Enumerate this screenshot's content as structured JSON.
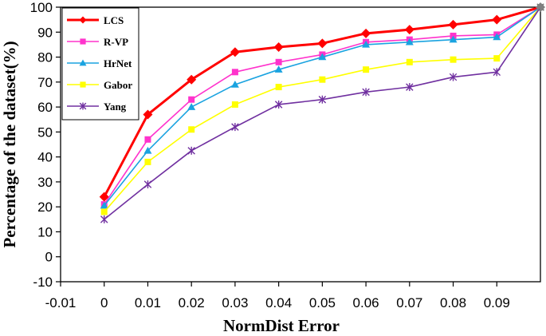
{
  "chart_data": {
    "type": "line",
    "title": "",
    "xlabel": "NormDist Error",
    "ylabel": "Percentage of the dataset(%)",
    "x": [
      0,
      0.01,
      0.02,
      0.03,
      0.04,
      0.05,
      0.06,
      0.07,
      0.08,
      0.09,
      0.1
    ],
    "xlim": [
      -0.01,
      0.1
    ],
    "ylim": [
      -10,
      100
    ],
    "xticks": [
      -0.01,
      0,
      0.01,
      0.02,
      0.03,
      0.04,
      0.05,
      0.06,
      0.07,
      0.08,
      0.09
    ],
    "xtick_labels": [
      "-0.01",
      "0",
      "0.01",
      "0.02",
      "0.03",
      "0.04",
      "0.05",
      "0.06",
      "0.07",
      "0.08",
      "0.09"
    ],
    "yticks": [
      -10,
      0,
      10,
      20,
      30,
      40,
      50,
      60,
      70,
      80,
      90,
      100
    ],
    "ytick_labels": [
      "-10",
      "0",
      "10",
      "20",
      "30",
      "40",
      "50",
      "60",
      "70",
      "80",
      "90",
      "100"
    ],
    "grid": false,
    "legend_position": "top-left",
    "series": [
      {
        "name": "LCS",
        "color": "#ff0000",
        "marker": "diamond",
        "values": [
          24,
          57,
          71,
          82,
          84,
          85.5,
          89.5,
          91,
          93,
          95,
          100
        ]
      },
      {
        "name": "R-VP",
        "color": "#ff33cc",
        "marker": "square",
        "values": [
          21,
          47,
          63,
          74,
          78,
          81,
          86,
          87,
          88.5,
          89,
          100
        ]
      },
      {
        "name": "HrNet",
        "color": "#1aa3e0",
        "marker": "triangle",
        "values": [
          20.5,
          42.5,
          60,
          69,
          75,
          80,
          85,
          86,
          87,
          88,
          100
        ]
      },
      {
        "name": "Gabor",
        "color": "#ffff00",
        "marker": "square",
        "values": [
          18,
          38,
          51,
          61,
          68,
          71,
          75,
          78,
          79,
          79.5,
          100
        ]
      },
      {
        "name": "Yang",
        "color": "#7030a0",
        "marker": "star",
        "values": [
          15,
          29,
          42.5,
          52,
          61,
          63,
          66,
          68,
          72,
          74,
          100
        ]
      }
    ]
  }
}
